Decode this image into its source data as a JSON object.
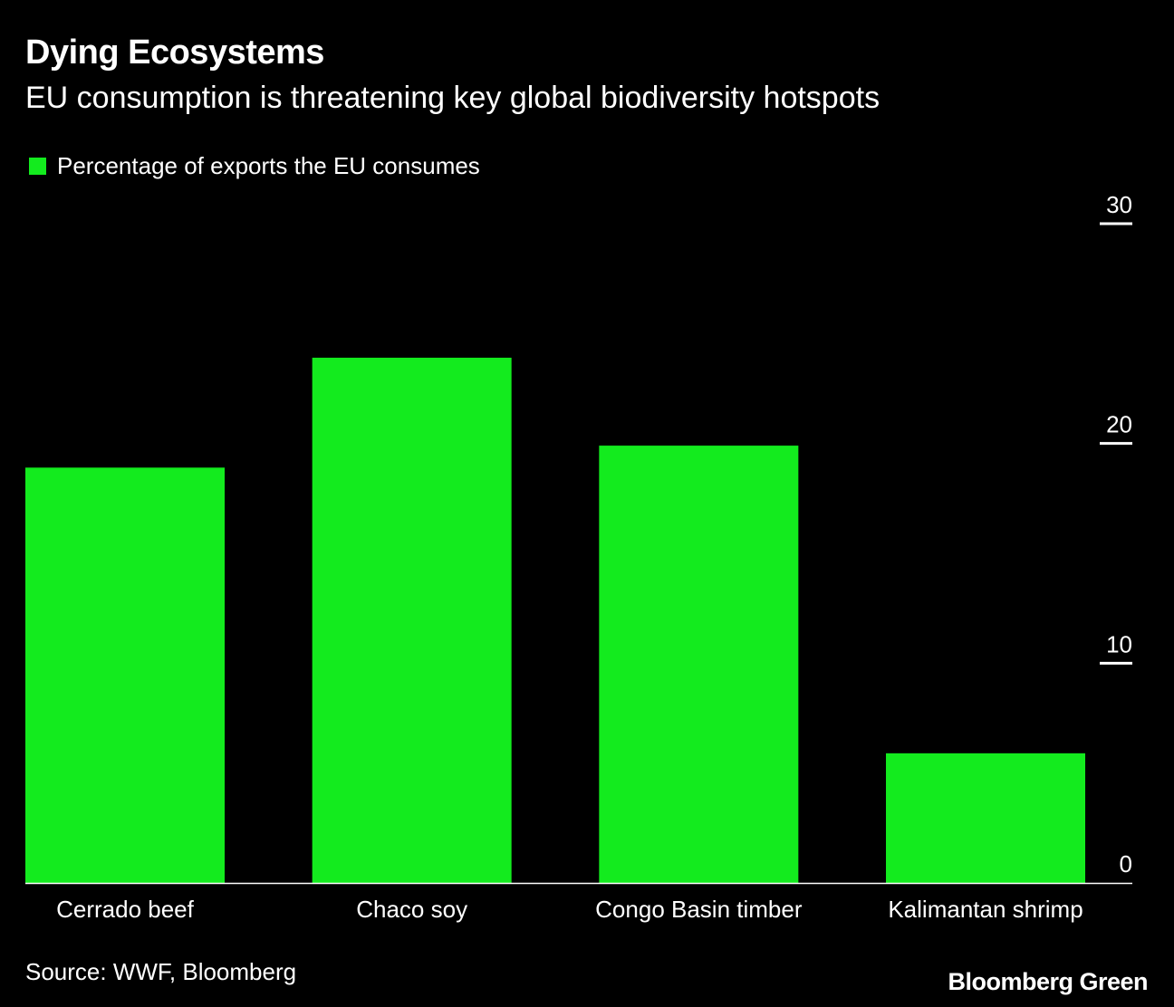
{
  "header": {
    "title": "Dying Ecosystems",
    "subtitle": "EU consumption is threatening key global biodiversity hotspots"
  },
  "legend": {
    "label": "Percentage of exports the EU consumes"
  },
  "colors": {
    "background": "#000000",
    "bar": "#13eb1e",
    "text": "#ffffff",
    "axis": "#ffffff"
  },
  "chart_data": {
    "type": "bar",
    "title": "Dying Ecosystems",
    "subtitle": "EU consumption is threatening key global biodiversity hotspots",
    "categories": [
      "Cerrado beef",
      "Chaco soy",
      "Congo Basin timber",
      "Kalimantan shrimp"
    ],
    "series": [
      {
        "name": "Percentage of exports the EU consumes",
        "values": [
          18.9,
          23.9,
          19.9,
          5.9
        ]
      }
    ],
    "xlabel": "",
    "ylabel": "",
    "ylim": [
      0,
      30
    ],
    "yticks": [
      0,
      10,
      20,
      30
    ],
    "ytick_labels": [
      "0",
      "10",
      "20",
      "30"
    ],
    "y_axis_side": "right",
    "grid": false,
    "legend_position": "top-left"
  },
  "footer": {
    "source": "Source: WWF, Bloomberg",
    "brand": "Bloomberg Green"
  }
}
